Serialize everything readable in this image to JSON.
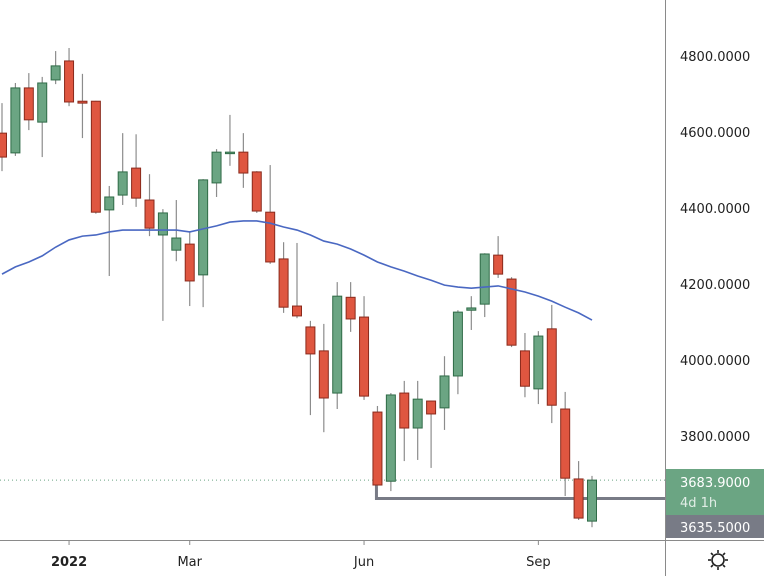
{
  "chart_data": {
    "type": "candlestick",
    "interval": "weekly",
    "colors": {
      "up": "#6ba583",
      "up_border": "#2f6b47",
      "down": "#df5640",
      "down_border": "#8a2a1c",
      "wick": "#8c8c8c",
      "ma": "#4a68c2",
      "price_tag": "#6ba583",
      "level_tag": "#787b86"
    },
    "ylim": [
      3520,
      4950
    ],
    "y_ticks": [
      {
        "value": 4800,
        "label": "4800.0000"
      },
      {
        "value": 4600,
        "label": "4600.0000"
      },
      {
        "value": 4400,
        "label": "4400.0000"
      },
      {
        "value": 4200,
        "label": "4200.0000"
      },
      {
        "value": 4000,
        "label": "4000.0000"
      },
      {
        "value": 3800,
        "label": "3800.0000"
      }
    ],
    "x_ticks": [
      {
        "date": "2022-01-03",
        "label": "2022"
      },
      {
        "date": "2022-03-07",
        "label": "Mar"
      },
      {
        "date": "2022-06-06",
        "label": "Jun"
      },
      {
        "date": "2022-09-05",
        "label": "Sep"
      }
    ],
    "dates": [
      "2021-11-29",
      "2021-12-06",
      "2021-12-13",
      "2021-12-20",
      "2021-12-27",
      "2022-01-03",
      "2022-01-10",
      "2022-01-17",
      "2022-01-24",
      "2022-01-31",
      "2022-02-07",
      "2022-02-14",
      "2022-02-21",
      "2022-02-28",
      "2022-03-07",
      "2022-03-14",
      "2022-03-21",
      "2022-03-28",
      "2022-04-04",
      "2022-04-11",
      "2022-04-18",
      "2022-04-25",
      "2022-05-02",
      "2022-05-09",
      "2022-05-16",
      "2022-05-23",
      "2022-05-30",
      "2022-06-06",
      "2022-06-13",
      "2022-06-20",
      "2022-06-27",
      "2022-07-04",
      "2022-07-11",
      "2022-07-18",
      "2022-07-25",
      "2022-08-01",
      "2022-08-08",
      "2022-08-15",
      "2022-08-22",
      "2022-08-29",
      "2022-09-05",
      "2022-09-12",
      "2022-09-19",
      "2022-09-26",
      "2022-10-03"
    ],
    "ohlc": [
      [
        4597,
        4676,
        4497,
        4534
      ],
      [
        4545,
        4729,
        4537,
        4716
      ],
      [
        4716,
        4755,
        4605,
        4632
      ],
      [
        4626,
        4745,
        4534,
        4729
      ],
      [
        4737,
        4813,
        4726,
        4774
      ],
      [
        4787,
        4821,
        4668,
        4679
      ],
      [
        4681,
        4753,
        4584,
        4676
      ],
      [
        4681,
        4682,
        4385,
        4389
      ],
      [
        4395,
        4458,
        4221,
        4429
      ],
      [
        4434,
        4597,
        4408,
        4495
      ],
      [
        4505,
        4594,
        4403,
        4426
      ],
      [
        4421,
        4489,
        4326,
        4347
      ],
      [
        4329,
        4397,
        4103,
        4387
      ],
      [
        4289,
        4421,
        4260,
        4321
      ],
      [
        4305,
        4339,
        4142,
        4208
      ],
      [
        4224,
        4476,
        4139,
        4474
      ],
      [
        4466,
        4555,
        4429,
        4547
      ],
      [
        4545,
        4645,
        4511,
        4547
      ],
      [
        4547,
        4597,
        4453,
        4492
      ],
      [
        4495,
        4497,
        4387,
        4392
      ],
      [
        4389,
        4513,
        4253,
        4258
      ],
      [
        4266,
        4310,
        4124,
        4139
      ],
      [
        4142,
        4308,
        4110,
        4116
      ],
      [
        4087,
        4103,
        3855,
        4016
      ],
      [
        4024,
        4095,
        3810,
        3900
      ],
      [
        3913,
        4205,
        3871,
        4168
      ],
      [
        4165,
        4205,
        4074,
        4108
      ],
      [
        4113,
        4168,
        3895,
        3905
      ],
      [
        3863,
        3879,
        3666,
        3671
      ],
      [
        3681,
        3913,
        3655,
        3908
      ],
      [
        3913,
        3945,
        3734,
        3821
      ],
      [
        3821,
        3945,
        3737,
        3897
      ],
      [
        3892,
        3893,
        3716,
        3858
      ],
      [
        3874,
        4010,
        3816,
        3958
      ],
      [
        3958,
        4131,
        3910,
        4126
      ],
      [
        4131,
        4168,
        4079,
        4137
      ],
      [
        4147,
        4281,
        4113,
        4279
      ],
      [
        4276,
        4326,
        4216,
        4226
      ],
      [
        4213,
        4218,
        4034,
        4039
      ],
      [
        4024,
        4071,
        3902,
        3931
      ],
      [
        3924,
        4076,
        3884,
        4063
      ],
      [
        4082,
        4145,
        3834,
        3881
      ],
      [
        3871,
        3916,
        3642,
        3689
      ],
      [
        3687,
        3734,
        3579,
        3584
      ],
      [
        3576,
        3695,
        3560,
        3683.9
      ]
    ],
    "moving_average": [
      4226,
      4245,
      4258,
      4274,
      4297,
      4316,
      4326,
      4329,
      4337,
      4342,
      4342,
      4342,
      4342,
      4342,
      4337,
      4345,
      4353,
      4363,
      4366,
      4366,
      4360,
      4350,
      4342,
      4329,
      4313,
      4305,
      4292,
      4276,
      4258,
      4245,
      4234,
      4221,
      4210,
      4197,
      4192,
      4189,
      4192,
      4195,
      4187,
      4179,
      4168,
      4155,
      4139,
      4124,
      4105
    ],
    "horizontal_ray": {
      "value": 3635.5,
      "start_date": "2022-06-13"
    },
    "last_price": 3683.9
  },
  "price_tag": {
    "price": "3683.9000",
    "countdown": "4d 1h"
  },
  "level_tag": {
    "price": "3635.5000"
  },
  "settings_icon": "gear-icon"
}
